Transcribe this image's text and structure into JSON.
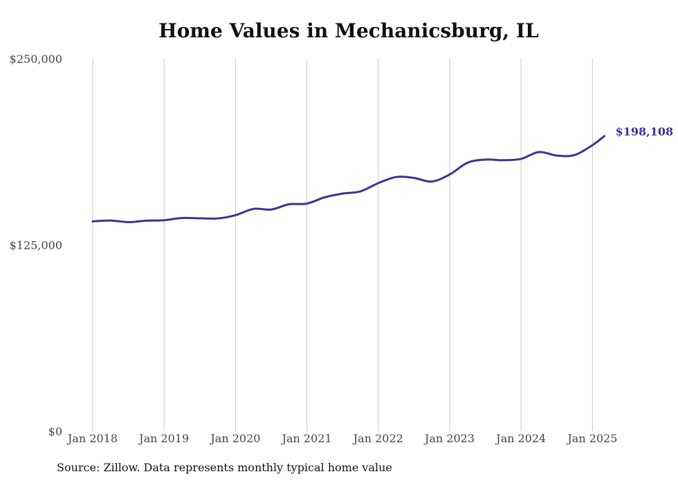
{
  "chart_data": {
    "type": "line",
    "title": "Home Values in Mechanicsburg, IL",
    "xlabel": "",
    "ylabel": "",
    "ylim": [
      0,
      250000
    ],
    "y_ticks": [
      "$250,000",
      "$125,000",
      "$0"
    ],
    "y_tick_values": [
      250000,
      125000,
      0
    ],
    "x_ticks": [
      "Jan 2018",
      "Jan 2019",
      "Jan 2020",
      "Jan 2021",
      "Jan 2022",
      "Jan 2023",
      "Jan 2024",
      "Jan 2025"
    ],
    "x_tick_values": [
      "2018-01",
      "2019-01",
      "2020-01",
      "2021-01",
      "2022-01",
      "2023-01",
      "2024-01",
      "2025-01"
    ],
    "grid": "vertical",
    "line_color": "#3b3296",
    "end_label": "$198,108",
    "series": [
      {
        "x": [
          "2018-01",
          "2018-04",
          "2018-07",
          "2018-10",
          "2019-01",
          "2019-04",
          "2019-07",
          "2019-10",
          "2020-01",
          "2020-04",
          "2020-07",
          "2020-10",
          "2021-01",
          "2021-04",
          "2021-07",
          "2021-10",
          "2022-01",
          "2022-04",
          "2022-07",
          "2022-10",
          "2023-01",
          "2023-04",
          "2023-07",
          "2023-10",
          "2024-01",
          "2024-04",
          "2024-07",
          "2024-10",
          "2025-01",
          "2025-03"
        ],
        "values": [
          140800,
          141400,
          140300,
          141300,
          141600,
          143100,
          142900,
          142800,
          145000,
          149200,
          148800,
          152300,
          152800,
          157000,
          159500,
          161000,
          166500,
          170600,
          170000,
          167600,
          172300,
          180200,
          182300,
          181900,
          182800,
          187400,
          185000,
          185400,
          192000,
          198108
        ]
      }
    ]
  },
  "source_text": "Source: Zillow. Data represents monthly typical home value"
}
